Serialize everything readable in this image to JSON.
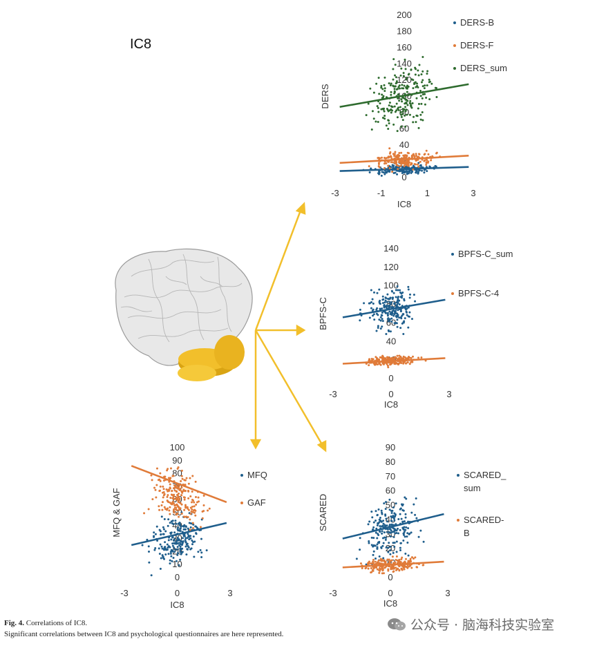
{
  "figure": {
    "panel_title": "IC8",
    "caption_label": "Fig. 4.",
    "caption_title": "Correlations of IC8.",
    "caption_text": "Significant correlations between IC8 and psychological questionnaires are here represented.",
    "watermark": "公众号 · 脑海科技实验室",
    "arrow_color": "#f2bf2b",
    "brain_highlight_color": "#f2bf2b"
  },
  "chart_data": [
    {
      "type": "scatter",
      "id": "ders",
      "xlabel": "IC8",
      "ylabel": "DERS",
      "xlim": [
        -3,
        3
      ],
      "ylim": [
        0,
        200
      ],
      "xticks": [
        -3,
        -1,
        1,
        3
      ],
      "yticks": [
        0,
        20,
        40,
        60,
        80,
        100,
        120,
        140,
        160,
        180,
        200
      ],
      "legend_position": "top-right",
      "series": [
        {
          "name": "DERS-B",
          "color": "#1f5e8c",
          "fit": [
            [
              -2.8,
              8
            ],
            [
              2.8,
              13
            ]
          ],
          "center": 10,
          "spread": 5,
          "n": 180
        },
        {
          "name": "DERS-F",
          "color": "#e07b39",
          "fit": [
            [
              -2.8,
              18
            ],
            [
              2.8,
              27
            ]
          ],
          "center": 22,
          "spread": 8,
          "n": 200
        },
        {
          "name": "DERS_sum",
          "color": "#2e6b2e",
          "fit": [
            [
              -2.8,
              87
            ],
            [
              2.8,
              115
            ]
          ],
          "center": 100,
          "spread": 30,
          "n": 230
        }
      ]
    },
    {
      "type": "scatter",
      "id": "bpfs",
      "xlabel": "IC8",
      "ylabel": "BPFS-C",
      "xlim": [
        -3,
        3
      ],
      "ylim": [
        0,
        140
      ],
      "xticks": [
        -3,
        0,
        3
      ],
      "yticks": [
        0,
        20,
        40,
        60,
        80,
        100,
        120,
        140
      ],
      "legend_position": "top-right",
      "series": [
        {
          "name": "BPFS-C_sum",
          "color": "#1f5e8c",
          "fit": [
            [
              -2.5,
              66
            ],
            [
              2.8,
              85
            ]
          ],
          "center": 75,
          "spread": 17,
          "n": 220
        },
        {
          "name": "BPFS-C-4",
          "color": "#e07b39",
          "fit": [
            [
              -2.5,
              16
            ],
            [
              2.8,
              22
            ]
          ],
          "center": 19,
          "spread": 4,
          "n": 220
        }
      ]
    },
    {
      "type": "scatter",
      "id": "mfq",
      "xlabel": "IC8",
      "ylabel": "MFQ & GAF",
      "xlim": [
        -3,
        3
      ],
      "ylim": [
        0,
        100
      ],
      "xticks": [
        -3,
        0,
        3
      ],
      "yticks": [
        0,
        10,
        20,
        30,
        40,
        50,
        60,
        70,
        80,
        90,
        100
      ],
      "legend_position": "right",
      "series": [
        {
          "name": "MFQ",
          "color": "#1f5e8c",
          "fit": [
            [
              -2.6,
              25
            ],
            [
              2.8,
              42
            ]
          ],
          "center": 30,
          "spread": 15,
          "n": 220
        },
        {
          "name": "GAF",
          "color": "#e07b39",
          "fit": [
            [
              -2.6,
              86
            ],
            [
              2.8,
              58
            ]
          ],
          "center": 62,
          "spread": 16,
          "n": 220
        }
      ]
    },
    {
      "type": "scatter",
      "id": "scared",
      "xlabel": "IC8",
      "ylabel": "SCARED",
      "xlim": [
        -3,
        3
      ],
      "ylim": [
        0,
        90
      ],
      "xticks": [
        -3,
        0,
        3
      ],
      "yticks": [
        0,
        10,
        20,
        30,
        40,
        50,
        60,
        70,
        80,
        90
      ],
      "legend_position": "right",
      "series": [
        {
          "name": "SCARED_\nsum",
          "color": "#1f5e8c",
          "fit": [
            [
              -2.5,
              27
            ],
            [
              2.8,
              44
            ]
          ],
          "center": 35,
          "spread": 16,
          "n": 220
        },
        {
          "name": "SCARED-\nB",
          "color": "#e07b39",
          "fit": [
            [
              -2.5,
              7
            ],
            [
              2.8,
              11
            ]
          ],
          "center": 9,
          "spread": 4,
          "n": 220
        }
      ]
    }
  ]
}
